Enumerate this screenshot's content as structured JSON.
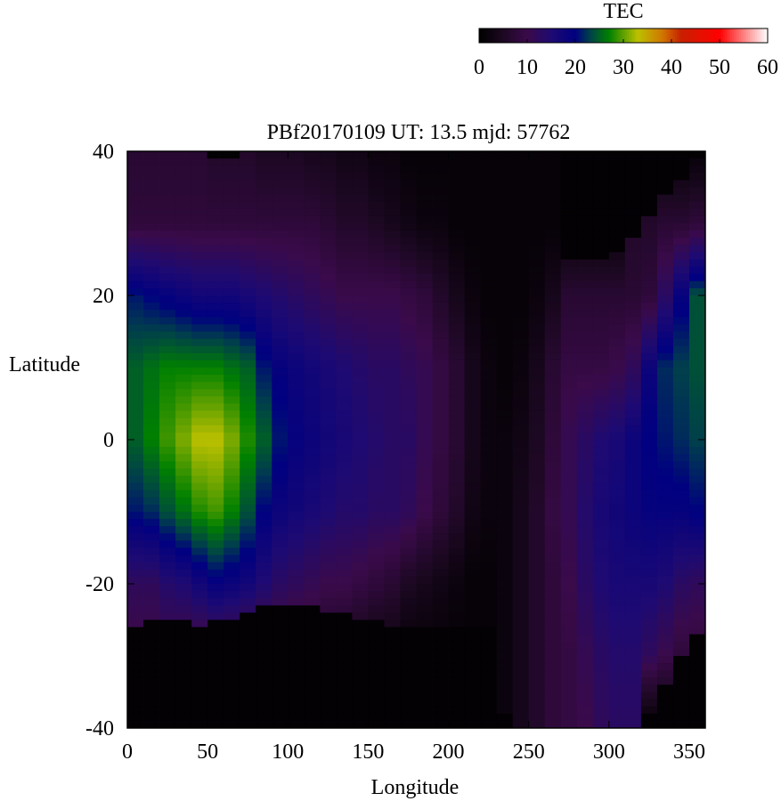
{
  "chart_data": {
    "type": "heatmap",
    "title": "PBf20170109  UT: 13.5  mjd: 57762",
    "xlabel": "Longitude",
    "ylabel": "Latitude",
    "xlim": [
      0,
      360
    ],
    "ylim": [
      -40,
      40
    ],
    "x_ticks": [
      "0",
      "50",
      "100",
      "150",
      "200",
      "250",
      "300",
      "350"
    ],
    "y_ticks": [
      "40",
      "20",
      "0",
      "-20",
      "-40"
    ],
    "colorbar": {
      "label": "TEC",
      "range": [
        0,
        60
      ],
      "ticks": [
        "0",
        "10",
        "20",
        "30",
        "40",
        "50",
        "60"
      ],
      "stops": [
        [
          0,
          "#000000"
        ],
        [
          5,
          "#1c0822"
        ],
        [
          10,
          "#3a0a4a"
        ],
        [
          15,
          "#1e0a72"
        ],
        [
          20,
          "#000080"
        ],
        [
          23,
          "#00404a"
        ],
        [
          27,
          "#008000"
        ],
        [
          33,
          "#bcc000"
        ],
        [
          38,
          "#d07800"
        ],
        [
          42,
          "#c82000"
        ],
        [
          50,
          "#ff0000"
        ],
        [
          55,
          "#ff8080"
        ],
        [
          60,
          "#ffffff"
        ]
      ]
    },
    "lon_centers": [
      5,
      15,
      25,
      35,
      45,
      55,
      65,
      75,
      85,
      95,
      105,
      115,
      125,
      135,
      145,
      155,
      165,
      175,
      185,
      195,
      205,
      215,
      225,
      235,
      245,
      255,
      265,
      275,
      285,
      295,
      305,
      315,
      325,
      335,
      345,
      355
    ],
    "lat_rows": [
      40,
      30,
      20,
      10,
      0,
      -10,
      -20,
      -30,
      -40
    ],
    "values": [
      [
        7,
        8,
        21,
        25,
        25,
        21,
        12,
        9,
        0
      ],
      [
        7,
        8,
        20,
        26,
        27,
        22,
        12,
        9,
        0
      ],
      [
        7,
        8,
        19,
        27,
        29,
        24,
        14,
        9,
        0
      ],
      [
        7,
        8,
        18,
        27,
        31,
        26,
        15,
        8,
        0
      ],
      [
        7,
        8,
        17,
        27,
        33,
        28,
        17,
        7,
        0
      ],
      [
        6,
        8,
        17,
        27,
        33,
        29,
        19,
        7,
        0
      ],
      [
        6,
        8,
        17,
        26,
        31,
        27,
        18,
        7,
        0
      ],
      [
        6,
        8,
        16,
        25,
        28,
        24,
        17,
        6,
        0
      ],
      [
        5,
        8,
        15,
        21,
        25,
        20,
        15,
        6,
        0
      ],
      [
        5,
        8,
        14,
        19,
        21,
        18,
        13,
        6,
        0
      ],
      [
        5,
        8,
        13,
        18,
        19,
        17,
        12,
        6,
        0
      ],
      [
        4,
        8,
        12,
        17,
        18,
        16,
        11,
        6,
        0
      ],
      [
        4,
        7,
        11,
        16,
        17,
        15,
        10,
        5,
        0
      ],
      [
        3,
        6,
        10,
        15,
        16,
        14,
        10,
        4,
        0
      ],
      [
        3,
        6,
        10,
        14,
        15,
        14,
        9,
        3,
        0
      ],
      [
        2,
        5,
        10,
        13,
        14,
        13,
        8,
        2,
        0
      ],
      [
        2,
        4,
        10,
        13,
        13,
        13,
        7,
        2,
        0
      ],
      [
        1,
        3,
        9,
        12,
        13,
        12,
        5,
        1,
        0
      ],
      [
        1,
        2,
        8,
        11,
        11,
        10,
        4,
        1,
        0
      ],
      [
        1,
        2,
        6,
        9,
        9,
        8,
        3,
        1,
        0
      ],
      [
        1,
        1,
        4,
        7,
        7,
        6,
        2,
        1,
        0
      ],
      [
        1,
        1,
        2,
        4,
        4,
        3,
        1,
        1,
        0
      ],
      [
        1,
        1,
        1,
        2,
        2,
        2,
        1,
        1,
        0
      ],
      [
        1,
        1,
        1,
        1,
        2,
        2,
        2,
        2,
        2
      ],
      [
        1,
        1,
        1,
        2,
        3,
        4,
        4,
        4,
        4
      ],
      [
        1,
        1,
        2,
        4,
        5,
        6,
        6,
        6,
        6
      ],
      [
        1,
        1,
        4,
        7,
        8,
        9,
        8,
        8,
        8
      ],
      [
        1,
        1,
        7,
        9,
        11,
        11,
        10,
        9,
        9
      ],
      [
        1,
        1,
        7,
        9,
        13,
        14,
        13,
        11,
        10
      ],
      [
        1,
        1,
        7,
        9,
        15,
        16,
        15,
        13,
        12
      ],
      [
        1,
        1,
        7,
        10,
        16,
        17,
        16,
        14,
        13
      ],
      [
        1,
        6,
        7,
        12,
        18,
        18,
        16,
        14,
        13
      ],
      [
        1,
        6,
        8,
        18,
        20,
        19,
        16,
        12,
        0
      ],
      [
        1,
        7,
        13,
        22,
        21,
        19,
        15,
        10,
        0
      ],
      [
        1,
        7,
        19,
        23,
        22,
        19,
        13,
        8,
        0
      ],
      [
        1,
        8,
        24,
        24,
        23,
        20,
        12,
        8,
        0
      ]
    ],
    "valid_lat_max": [
      40,
      40,
      40,
      40,
      40,
      39,
      39,
      40,
      40,
      40,
      40,
      40,
      40,
      40,
      40,
      40,
      40,
      40,
      40,
      40,
      40,
      40,
      40,
      40,
      40,
      40,
      40,
      24.5,
      24.5,
      25,
      26,
      28,
      31,
      33.5,
      36,
      38.5
    ],
    "valid_lat_min": [
      -26,
      -25,
      -25,
      -25,
      -26,
      -25,
      -25,
      -24,
      -23,
      -23,
      -23,
      -23,
      -24,
      -24,
      -25,
      -25,
      -26,
      -26,
      -26,
      -26,
      -26,
      -26,
      -26,
      -38,
      -40,
      -40,
      -40,
      -40,
      -40,
      -40,
      -40,
      -40,
      -38,
      -34,
      -30,
      -27
    ]
  }
}
